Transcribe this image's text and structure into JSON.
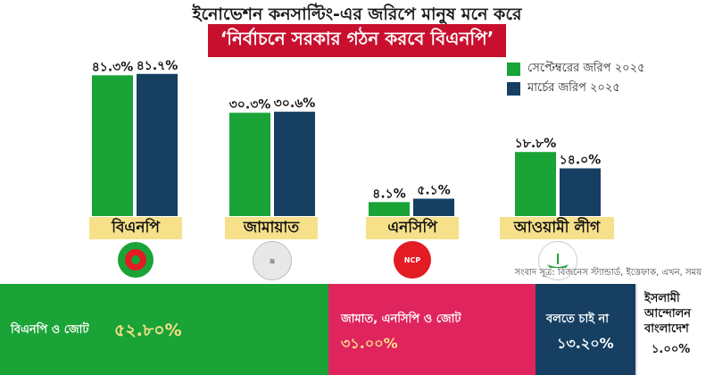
{
  "header": {
    "title": "ইনোভেশন কনসাল্টিং-এর জরিপে মানুষ মনে করে",
    "subtitle": "‘নির্বাচনে সরকার গঠন করবে বিএনপি’"
  },
  "legend": [
    {
      "label": "সেপ্টেম্বরের জরিপ ২০২৫",
      "color": "#1aa336"
    },
    {
      "label": "মার্চের জরিপ ২০২৫",
      "color": "#163f62"
    }
  ],
  "chart_data": {
    "type": "bar",
    "title": "ইনোভেশন কনসাল্টিং-এর জরিপে মানুষ মনে করে",
    "subtitle": "‘নির্বাচনে সরকার গঠন করবে বিএনপি’",
    "categories": [
      "বিএনপি",
      "জামায়াত",
      "এনসিপি",
      "আওয়ামী লীগ"
    ],
    "series": [
      {
        "name": "সেপ্টেম্বরের জরিপ ২০২৫",
        "values": [
          41.3,
          30.3,
          4.1,
          18.8
        ],
        "labels": [
          "৪১.৩%",
          "৩০.৩%",
          "৪.১%",
          "১৮.৮%"
        ],
        "color": "#1aa336"
      },
      {
        "name": "মার্চের জরিপ ২০২৫",
        "values": [
          41.7,
          30.6,
          5.1,
          14.0
        ],
        "labels": [
          "৪১.৭%",
          "৩০.৬%",
          "৫.১%",
          "১৪.০%"
        ],
        "color": "#163f62"
      }
    ],
    "ylim": [
      0,
      44
    ],
    "grid": false,
    "legend_position": "top-right"
  },
  "logos": [
    {
      "text": "",
      "bg": "#1aa336",
      "fg": "#e31b23"
    },
    {
      "text": "",
      "bg": "#e8e8e8",
      "fg": "#555555"
    },
    {
      "text": "NCP",
      "bg": "#e31b23",
      "fg": "#ffffff"
    },
    {
      "text": "",
      "bg": "#ffffff",
      "fg": "#1aa336"
    }
  ],
  "source": "সংবাদ সূত্র: বিজনেস স্ট্যান্ডার্ড, ইত্তেফাক, এখন, সময়",
  "summary": [
    {
      "text": "বিএনপি ও জোট",
      "value": "৫২.৮০%",
      "bg": "#1aa336"
    },
    {
      "text": "জামাত, এনসিপি ও জোট",
      "value": "৩১.০০%",
      "bg": "#e0245e"
    },
    {
      "text": "বলতে চাই না",
      "value": "১৩.২০%",
      "bg": "#163f62"
    },
    {
      "text": "ইসলামী আন্দোলন বাংলাদেশ",
      "value": "১.০০%",
      "bg": "#ffffff"
    }
  ]
}
